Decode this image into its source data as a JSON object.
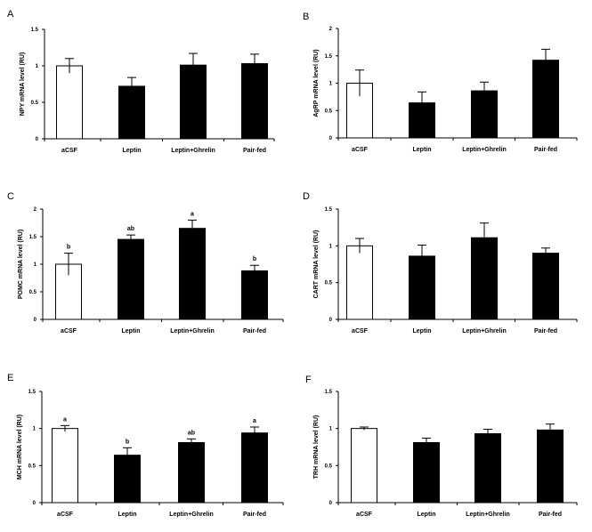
{
  "chart_data": [
    {
      "panel": "A",
      "type": "bar",
      "ylabel": "NPY mRNA level (RU)",
      "categories": [
        "aCSF",
        "Leptin",
        "Leptin+Ghrelin",
        "Pair-fed"
      ],
      "values": [
        1.0,
        0.72,
        1.01,
        1.03
      ],
      "errors": [
        0.1,
        0.12,
        0.16,
        0.13
      ],
      "sig": [
        "",
        "",
        "",
        ""
      ],
      "fills": [
        "#ffffff",
        "#000000",
        "#000000",
        "#000000"
      ],
      "ylim": [
        0,
        1.5
      ],
      "yticks": [
        0,
        0.5,
        1,
        1.5
      ],
      "ytick_labels": [
        "0",
        "0.5",
        "1",
        "1.5"
      ]
    },
    {
      "panel": "B",
      "type": "bar",
      "ylabel": "AgRP mRNA level (RU)",
      "categories": [
        "aCSF",
        "Leptin",
        "Leptin+Ghrelin",
        "Pair-fed"
      ],
      "values": [
        1.0,
        0.64,
        0.86,
        1.42
      ],
      "errors": [
        0.24,
        0.2,
        0.16,
        0.2
      ],
      "sig": [
        "",
        "",
        "",
        ""
      ],
      "fills": [
        "#ffffff",
        "#000000",
        "#000000",
        "#000000"
      ],
      "ylim": [
        0,
        2
      ],
      "yticks": [
        0,
        0.5,
        1,
        1.5,
        2
      ],
      "ytick_labels": [
        "0",
        "0.5",
        "1",
        "1.5",
        "2"
      ]
    },
    {
      "panel": "C",
      "type": "bar",
      "ylabel": "POMC mRNA level (RU)",
      "categories": [
        "aCSF",
        "Leptin",
        "Leptin+Ghrelin",
        "Pair-fed"
      ],
      "values": [
        1.0,
        1.45,
        1.65,
        0.88
      ],
      "errors": [
        0.2,
        0.08,
        0.15,
        0.1
      ],
      "sig": [
        "b",
        "ab",
        "a",
        "b"
      ],
      "fills": [
        "#ffffff",
        "#000000",
        "#000000",
        "#000000"
      ],
      "ylim": [
        0,
        2
      ],
      "yticks": [
        0,
        0.5,
        1,
        1.5,
        2
      ],
      "ytick_labels": [
        "0",
        "0.5",
        "1",
        "1.5",
        "2"
      ]
    },
    {
      "panel": "D",
      "type": "bar",
      "ylabel": "CART mRNA level (RU)",
      "categories": [
        "aCSF",
        "Leptin",
        "Leptin+Ghrelin",
        "Pair-fed"
      ],
      "values": [
        1.0,
        0.86,
        1.11,
        0.9
      ],
      "errors": [
        0.1,
        0.15,
        0.2,
        0.07
      ],
      "sig": [
        "",
        "",
        "",
        ""
      ],
      "fills": [
        "#ffffff",
        "#000000",
        "#000000",
        "#000000"
      ],
      "ylim": [
        0,
        1.5
      ],
      "yticks": [
        0,
        0.5,
        1,
        1.5
      ],
      "ytick_labels": [
        "0",
        "0.5",
        "1",
        "1.5"
      ]
    },
    {
      "panel": "E",
      "type": "bar",
      "ylabel": "MCH mRNA level (RU)",
      "categories": [
        "aCSF",
        "Leptin",
        "Leptin+Ghrelin",
        "Pair-fed"
      ],
      "values": [
        1.0,
        0.64,
        0.81,
        0.94
      ],
      "errors": [
        0.04,
        0.1,
        0.05,
        0.08
      ],
      "sig": [
        "a",
        "b",
        "ab",
        "a"
      ],
      "fills": [
        "#ffffff",
        "#000000",
        "#000000",
        "#000000"
      ],
      "ylim": [
        0,
        1.5
      ],
      "yticks": [
        0,
        0.5,
        1,
        1.5
      ],
      "ytick_labels": [
        "0",
        "0.5",
        "1",
        "1.5"
      ]
    },
    {
      "panel": "F",
      "type": "bar",
      "ylabel": "TRH mRNA level (RU)",
      "categories": [
        "aCSF",
        "Leptin",
        "Leptin+Ghrelin",
        "Pair-fed"
      ],
      "values": [
        1.0,
        0.81,
        0.93,
        0.98
      ],
      "errors": [
        0.02,
        0.06,
        0.06,
        0.08
      ],
      "sig": [
        "",
        "",
        "",
        ""
      ],
      "fills": [
        "#ffffff",
        "#000000",
        "#000000",
        "#000000"
      ],
      "ylim": [
        0,
        1.5
      ],
      "yticks": [
        0,
        0.5,
        1,
        1.5
      ],
      "ytick_labels": [
        "0",
        "0.5",
        "1",
        "1.5"
      ]
    }
  ]
}
